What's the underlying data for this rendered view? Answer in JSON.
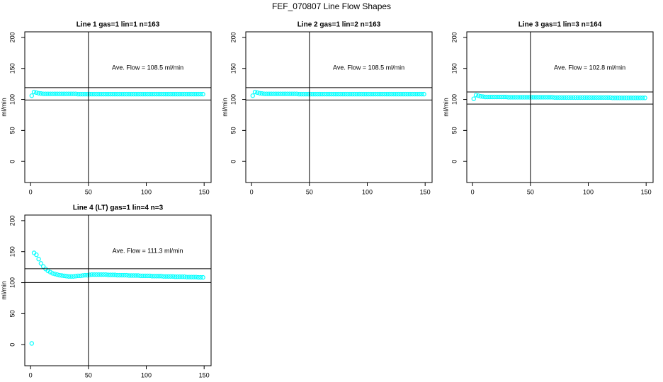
{
  "title": "FEF_070807  Line Flow Shapes",
  "chart_data": [
    {
      "type": "scatter",
      "title": "Line 1 gas=1 lin=1 n=163",
      "ylabel": "ml/min",
      "annotation": "Ave. Flow =  108.5  ml/min",
      "x": [
        1,
        3,
        5,
        7,
        9,
        11,
        13,
        15,
        17,
        19,
        21,
        23,
        25,
        27,
        29,
        31,
        33,
        35,
        37,
        39,
        41,
        43,
        45,
        47,
        49,
        51,
        53,
        55,
        57,
        59,
        61,
        63,
        65,
        67,
        69,
        71,
        73,
        75,
        77,
        79,
        81,
        83,
        85,
        87,
        89,
        91,
        93,
        95,
        97,
        99,
        101,
        103,
        105,
        107,
        109,
        111,
        113,
        115,
        117,
        119,
        121,
        123,
        125,
        127,
        129,
        131,
        133,
        135,
        137,
        139,
        141,
        143,
        145,
        147,
        149
      ],
      "series": [
        {
          "color": "#00ffff",
          "values": [
            106,
            112,
            111,
            110,
            109.5,
            109,
            109,
            109,
            109,
            109,
            109,
            109,
            109,
            109,
            109,
            109,
            109,
            109,
            109,
            109,
            108.5,
            108.5,
            108.5,
            108.5,
            108.5,
            108.5,
            108.5,
            108.5,
            108.5,
            108.5,
            108.5,
            108.5,
            108.5,
            108.5,
            108.5,
            108.5,
            108.5,
            108.5,
            108.5,
            108.5,
            108.5,
            108.5,
            108.5,
            108.5,
            108.5,
            108.5,
            108.5,
            108.5,
            108.5,
            108.5,
            108.5,
            108.5,
            108.5,
            108.5,
            108.5,
            108.5,
            108.5,
            108.5,
            108.5,
            108.5,
            108.5,
            108.5,
            108.5,
            108.5,
            108.5,
            108.5,
            108.5,
            108.5,
            108.5,
            108.5,
            108.5,
            108.5,
            108.5,
            108.5,
            108.5
          ]
        }
      ],
      "xlim": [
        -5,
        156
      ],
      "ylim": [
        -34,
        209
      ],
      "xticks": [
        0,
        50,
        100,
        150
      ],
      "yticks": [
        0,
        50,
        100,
        150,
        200
      ],
      "hlines": [
        119,
        99
      ],
      "vline": 50
    },
    {
      "type": "scatter",
      "title": "Line 2 gas=1 lin=2 n=163",
      "ylabel": "ml/min",
      "annotation": "Ave. Flow =  108.5  ml/min",
      "x": [
        1,
        3,
        5,
        7,
        9,
        11,
        13,
        15,
        17,
        19,
        21,
        23,
        25,
        27,
        29,
        31,
        33,
        35,
        37,
        39,
        41,
        43,
        45,
        47,
        49,
        51,
        53,
        55,
        57,
        59,
        61,
        63,
        65,
        67,
        69,
        71,
        73,
        75,
        77,
        79,
        81,
        83,
        85,
        87,
        89,
        91,
        93,
        95,
        97,
        99,
        101,
        103,
        105,
        107,
        109,
        111,
        113,
        115,
        117,
        119,
        121,
        123,
        125,
        127,
        129,
        131,
        133,
        135,
        137,
        139,
        141,
        143,
        145,
        147,
        149
      ],
      "series": [
        {
          "color": "#00ffff",
          "values": [
            106,
            112,
            111,
            110,
            109.5,
            109,
            109,
            109,
            109,
            109,
            109,
            109,
            109,
            109,
            109,
            109,
            109,
            109,
            109,
            109,
            108.5,
            108.5,
            108.5,
            108.5,
            108.5,
            108.5,
            108.5,
            108.5,
            108.5,
            108.5,
            108.5,
            108.5,
            108.5,
            108.5,
            108.5,
            108.5,
            108.5,
            108.5,
            108.5,
            108.5,
            108.5,
            108.5,
            108.5,
            108.5,
            108.5,
            108.5,
            108.5,
            108.5,
            108.5,
            108.5,
            108.5,
            108.5,
            108.5,
            108.5,
            108.5,
            108.5,
            108.5,
            108.5,
            108.5,
            108.5,
            108.5,
            108.5,
            108.5,
            108.5,
            108.5,
            108.5,
            108.5,
            108.5,
            108.5,
            108.5,
            108.5,
            108.5,
            108.5,
            108.5,
            108.5
          ]
        }
      ],
      "xlim": [
        -5,
        156
      ],
      "ylim": [
        -34,
        209
      ],
      "xticks": [
        0,
        50,
        100,
        150
      ],
      "yticks": [
        0,
        50,
        100,
        150,
        200
      ],
      "hlines": [
        119,
        99
      ],
      "vline": 50
    },
    {
      "type": "scatter",
      "title": "Line 3 gas=1 lin=3 n=164",
      "ylabel": "ml/min",
      "annotation": "Ave. Flow =  102.8  ml/min",
      "x": [
        1,
        3,
        5,
        7,
        9,
        11,
        13,
        15,
        17,
        19,
        21,
        23,
        25,
        27,
        29,
        31,
        33,
        35,
        37,
        39,
        41,
        43,
        45,
        47,
        49,
        51,
        53,
        55,
        57,
        59,
        61,
        63,
        65,
        67,
        69,
        71,
        73,
        75,
        77,
        79,
        81,
        83,
        85,
        87,
        89,
        91,
        93,
        95,
        97,
        99,
        101,
        103,
        105,
        107,
        109,
        111,
        113,
        115,
        117,
        119,
        121,
        123,
        125,
        127,
        129,
        131,
        133,
        135,
        137,
        139,
        141,
        143,
        145,
        147,
        149
      ],
      "series": [
        {
          "color": "#00ffff",
          "values": [
            101,
            107,
            106,
            105,
            104.5,
            104,
            104,
            104,
            104,
            104,
            104,
            104,
            104,
            104,
            104,
            103.5,
            103.5,
            103.5,
            103.5,
            103.5,
            103.5,
            103.5,
            103.5,
            103.5,
            103.5,
            103.5,
            103.5,
            103.5,
            103.5,
            103.5,
            103.5,
            103.5,
            103.5,
            103.5,
            103.5,
            103,
            103,
            103,
            103,
            103,
            103,
            103,
            103,
            103,
            103,
            103,
            103,
            103,
            103,
            103,
            103,
            103,
            103,
            103,
            103,
            103,
            103,
            103,
            103,
            103,
            102.5,
            102.5,
            102.5,
            102.5,
            102.5,
            102.5,
            102.5,
            102.5,
            102.5,
            102.5,
            102.5,
            102.5,
            102.5,
            102.5,
            102.5
          ]
        }
      ],
      "xlim": [
        -5,
        156
      ],
      "ylim": [
        -34,
        209
      ],
      "xticks": [
        0,
        50,
        100,
        150
      ],
      "yticks": [
        0,
        50,
        100,
        150,
        200
      ],
      "hlines": [
        112,
        92.5
      ],
      "vline": 50
    },
    {
      "type": "scatter",
      "title": "Line 4 (LT) gas=1 lin=4 n=3",
      "ylabel": "ml/min",
      "annotation": "Ave. Flow =  111.3  ml/min",
      "x": [
        1,
        3,
        5,
        7,
        9,
        11,
        13,
        15,
        17,
        19,
        21,
        23,
        25,
        27,
        29,
        31,
        33,
        35,
        37,
        39,
        41,
        43,
        45,
        47,
        49,
        51,
        53,
        55,
        57,
        59,
        61,
        63,
        65,
        67,
        69,
        71,
        73,
        75,
        77,
        79,
        81,
        83,
        85,
        87,
        89,
        91,
        93,
        95,
        97,
        99,
        101,
        103,
        105,
        107,
        109,
        111,
        113,
        115,
        117,
        119,
        121,
        123,
        125,
        127,
        129,
        131,
        133,
        135,
        137,
        139,
        141,
        143,
        145,
        147,
        149
      ],
      "series": [
        {
          "color": "#00ffff",
          "values": [
            2,
            148,
            145,
            138,
            131,
            126,
            122,
            119,
            117,
            115,
            114,
            113,
            112,
            111.5,
            111,
            110.5,
            110,
            110,
            110,
            110.5,
            111,
            111,
            111.5,
            112,
            112,
            112.5,
            113,
            113,
            113,
            113,
            113,
            113,
            113,
            112.5,
            112.5,
            112.5,
            112.5,
            112,
            112,
            112,
            112,
            112,
            111.5,
            111.5,
            111.5,
            111.5,
            111.5,
            111,
            111,
            111,
            111,
            111,
            110.5,
            110.5,
            110.5,
            110.5,
            110.5,
            110,
            110,
            110,
            110,
            110,
            109.5,
            109.5,
            109.5,
            109.5,
            109.5,
            109,
            109,
            109,
            109,
            109,
            108.5,
            108.5,
            108.5
          ]
        }
      ],
      "xlim": [
        -5,
        156
      ],
      "ylim": [
        -34,
        209
      ],
      "xticks": [
        0,
        50,
        100,
        150
      ],
      "yticks": [
        0,
        50,
        100,
        150,
        200
      ],
      "hlines": [
        122.4,
        100.2
      ],
      "vline": 50
    }
  ]
}
